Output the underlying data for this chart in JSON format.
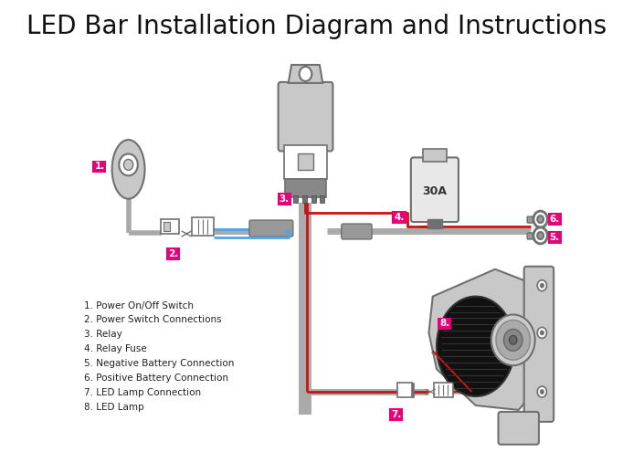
{
  "title": "LED Bar Installation Diagram and Instructions",
  "title_fontsize": 20,
  "bg_color": "#ffffff",
  "label_bg": "#e8007a",
  "label_fg": "#ffffff",
  "gray": "#b0b0b0",
  "dark_gray": "#707070",
  "light_gray": "#c8c8c8",
  "mid_gray": "#999999",
  "wire_gray": "#aaaaaa",
  "wire_blue": "#4da6e8",
  "wire_red": "#cc1111",
  "legend": [
    "1. Power On/Off Switch",
    "2. Power Switch Connections",
    "3. Relay",
    "4. Relay Fuse",
    "5. Negative Battery Connection",
    "6. Positive Battery Connection",
    "7. LED Lamp Connection",
    "8. LED Lamp"
  ]
}
